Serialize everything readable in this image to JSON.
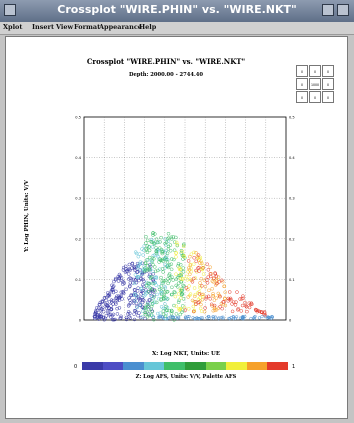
{
  "window": {
    "title": "Crossplot \"WIRE.PHIN\" vs. \"WIRE.NKT\""
  },
  "menu": [
    "Xplot",
    "Insert",
    "View",
    "Format",
    "Appearance",
    "Help"
  ],
  "plot": {
    "title": "Crossplot \"WIRE.PHIN\" vs. \"WIRE.NKT\"",
    "subtitle": "Depth: 2000.00 - 2744.40",
    "ylabel": "Y: Log PHIN, Units: V/V",
    "xlabel": "X: Log NKT, Units: UE",
    "zlabel": "Z: Log AFS, Units: V/V, Palette AFS",
    "colorbar_min": "0",
    "colorbar_max": "1",
    "palette": [
      "#3a3aa8",
      "#4d4dc4",
      "#4a8fd0",
      "#66c6d8",
      "#3fbf6a",
      "#2f9d3a",
      "#7ad04a",
      "#f1ef3a",
      "#f6a12a",
      "#e43a2a"
    ],
    "legend_grid": [
      "0",
      "0",
      "0",
      "0",
      "1000",
      "0",
      "0",
      "0",
      "0"
    ]
  },
  "chart_data": {
    "type": "scatter",
    "x_range": [
      0,
      1
    ],
    "y_range": [
      0,
      0.5
    ],
    "y_ticks": [
      "0",
      "0.1",
      "0.2",
      "0.3",
      "0.4",
      "0.5"
    ],
    "color_by": "AFS",
    "clusters": [
      {
        "color_index": 0,
        "x_range": [
          0.05,
          0.35
        ],
        "y_range": [
          0.0,
          0.14
        ],
        "n": 260
      },
      {
        "color_index": 3,
        "x_range": [
          0.25,
          0.42
        ],
        "y_range": [
          0.0,
          0.2
        ],
        "n": 120
      },
      {
        "color_index": 4,
        "x_range": [
          0.3,
          0.5
        ],
        "y_range": [
          0.0,
          0.22
        ],
        "n": 200
      },
      {
        "color_index": 7,
        "x_range": [
          0.45,
          0.6
        ],
        "y_range": [
          0.02,
          0.2
        ],
        "n": 70
      },
      {
        "color_index": 8,
        "x_range": [
          0.5,
          0.7
        ],
        "y_range": [
          0.02,
          0.2
        ],
        "n": 60
      },
      {
        "color_index": 9,
        "x_range": [
          0.5,
          0.9
        ],
        "y_range": [
          0.02,
          0.2
        ],
        "n": 90
      }
    ]
  }
}
